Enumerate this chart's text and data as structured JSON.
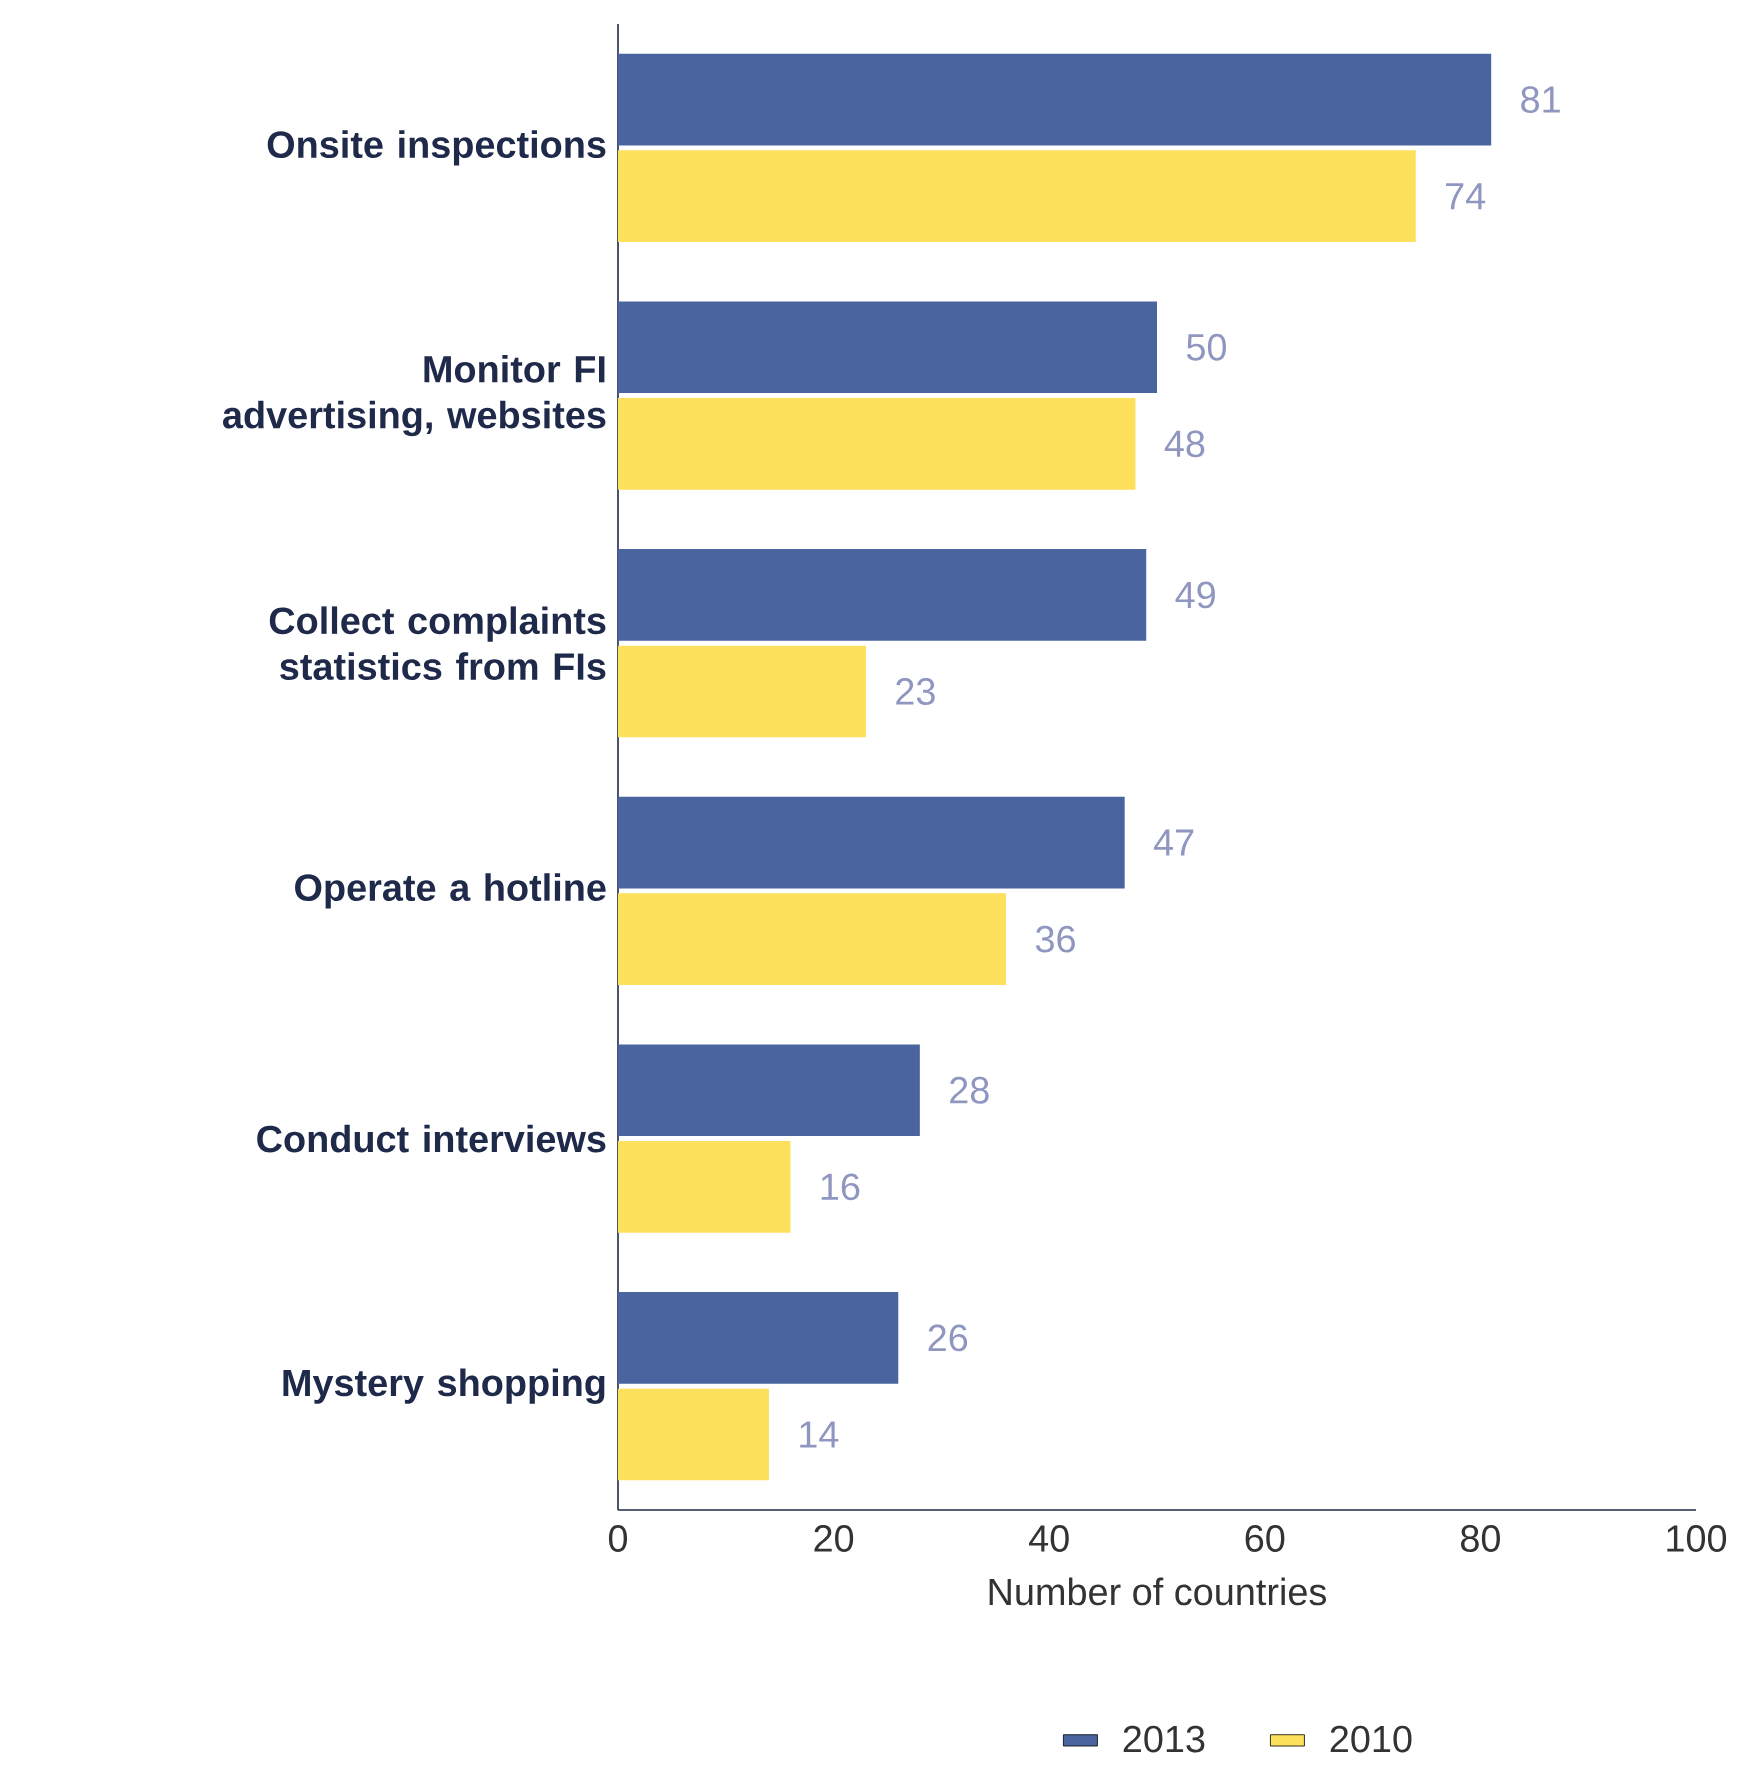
{
  "chart_data": {
    "type": "bar",
    "orientation": "horizontal",
    "xlabel": "Number of countries",
    "categories": [
      "Onsite inspections",
      "Monitor FI advertising, websites",
      "Collect complaints statistics from FIs",
      "Operate a hotline",
      "Conduct interviews",
      "Mystery shopping"
    ],
    "series": [
      {
        "name": "2013",
        "color": "#4a64a0",
        "values": [
          81,
          50,
          49,
          47,
          28,
          26
        ]
      },
      {
        "name": "2010",
        "color": "#fde05c",
        "values": [
          74,
          48,
          23,
          36,
          16,
          14
        ]
      }
    ],
    "xlim": [
      0,
      100
    ],
    "xticks": [
      0,
      20,
      40,
      60,
      80,
      100
    ],
    "data_labels": true,
    "legend": "bottom"
  }
}
